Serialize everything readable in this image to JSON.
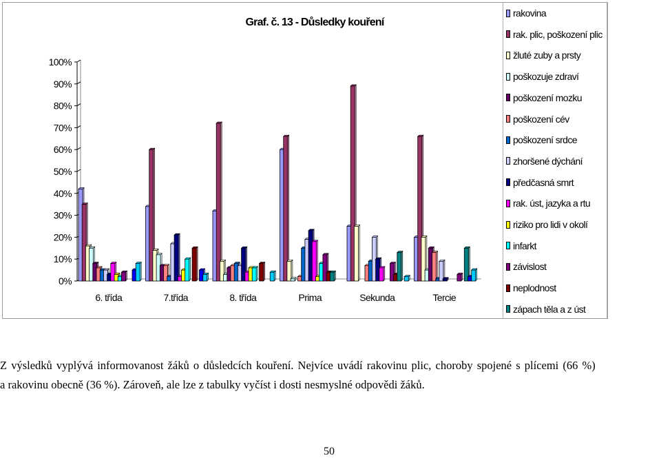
{
  "chart_data": {
    "type": "bar",
    "title": "Graf. č. 13 - Důsledky kouření",
    "categories": [
      "6. třída",
      "7.třída",
      "8. třída",
      "Prima",
      "Sekunda",
      "Tercie"
    ],
    "ylim": [
      0,
      100
    ],
    "yticks": [
      "0%",
      "10%",
      "20%",
      "30%",
      "40%",
      "50%",
      "60%",
      "70%",
      "80%",
      "90%",
      "100%"
    ],
    "legend_position": "right",
    "series": [
      {
        "name": "rakovina",
        "color": "#9999FF",
        "values": [
          42,
          34,
          32,
          60,
          25,
          20
        ]
      },
      {
        "name": "rak. plic, poškození plic",
        "color": "#993366",
        "values": [
          35,
          60,
          72,
          66,
          89,
          66
        ]
      },
      {
        "name": "žluté zuby a prsty",
        "color": "#FFFFCC",
        "values": [
          16,
          14,
          9,
          9,
          25,
          20
        ]
      },
      {
        "name": "poškozuje zdraví",
        "color": "#CCFFFF",
        "values": [
          15,
          12,
          3,
          1,
          0,
          5
        ]
      },
      {
        "name": "poškození mozku",
        "color": "#660066",
        "values": [
          8,
          7,
          6,
          0,
          0,
          15
        ]
      },
      {
        "name": "poškození cév",
        "color": "#FF8080",
        "values": [
          6,
          7,
          7,
          2,
          7,
          13
        ]
      },
      {
        "name": "poškození srdce",
        "color": "#0066CC",
        "values": [
          5,
          2,
          8,
          15,
          9,
          1
        ]
      },
      {
        "name": "zhoršené dýchání",
        "color": "#CCCCFF",
        "values": [
          5,
          17,
          7,
          19,
          20,
          9
        ]
      },
      {
        "name": "předčasná smrt",
        "color": "#000080",
        "values": [
          3,
          21,
          15,
          23,
          10,
          1
        ]
      },
      {
        "name": "rak. úst, jazyka a rtu",
        "color": "#FF00FF",
        "values": [
          8,
          2,
          4,
          18,
          6,
          0
        ]
      },
      {
        "name": "riziko pro lidi v okolí",
        "color": "#FFFF00",
        "values": [
          3,
          5,
          6,
          2,
          0,
          0
        ]
      },
      {
        "name": "infarkt",
        "color": "#00FFFF",
        "values": [
          2,
          10,
          6,
          8,
          0,
          0
        ]
      },
      {
        "name": "závislost",
        "color": "#800080",
        "values": [
          4,
          0,
          0,
          12,
          8,
          3
        ]
      },
      {
        "name": "neplodnost",
        "color": "#800000",
        "values": [
          0,
          15,
          8,
          4,
          3,
          0
        ]
      },
      {
        "name": "zápach těla a z úst",
        "color": "#008080",
        "values": [
          0,
          0,
          0,
          4,
          13,
          15
        ]
      },
      {
        "name": "",
        "color": "#0000FF",
        "values": [
          5,
          5,
          0,
          0,
          0,
          2
        ]
      },
      {
        "name": "",
        "color": "#00CCFF",
        "values": [
          8,
          3,
          4,
          0,
          2,
          5
        ]
      }
    ]
  },
  "paragraph": {
    "line1": "Z výsledků vyplývá informovanost žáků o důsledcích kouření. Nejvíce uvádí rakovinu plic, choroby spojené s plícemi (66 %)",
    "line2": "a rakovinu obecně (36 %). Zároveň, ale lze z tabulky vyčíst i dosti nesmyslné odpovědi žáků."
  },
  "page_number": "50"
}
